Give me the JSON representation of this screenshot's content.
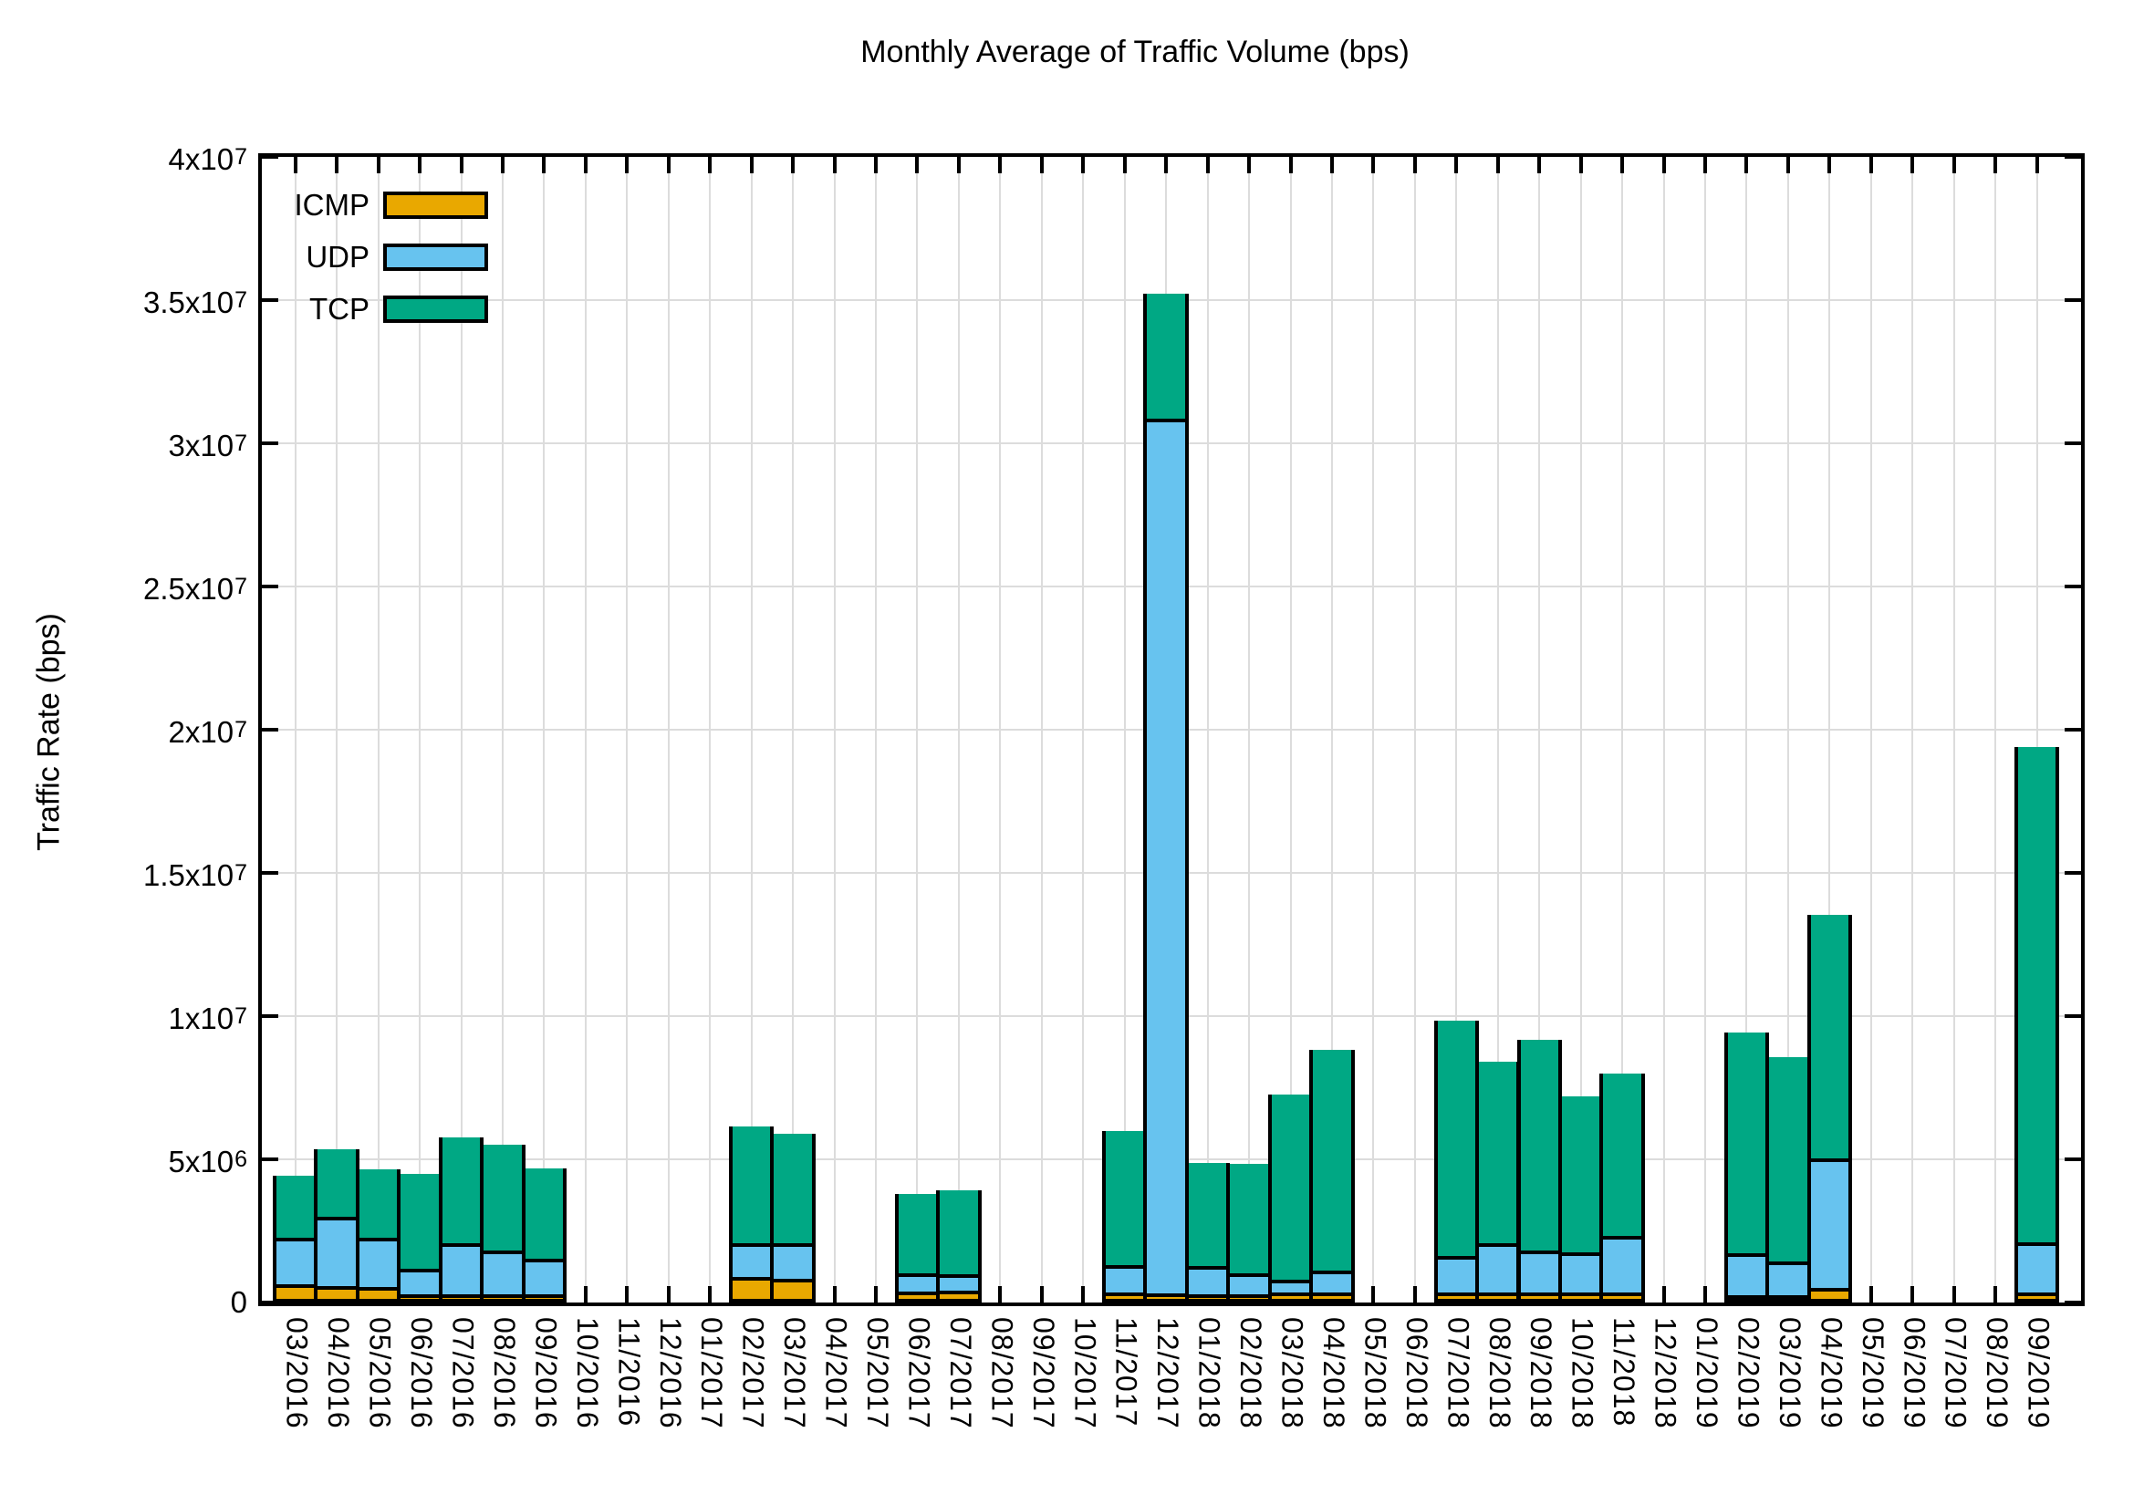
{
  "title": "Monthly Average of Traffic Volume (bps)",
  "axes": {
    "y_label": "Traffic Rate (bps)",
    "y_max": 40000000,
    "y_ticks": [
      {
        "label": "0",
        "sup": "",
        "value": 0
      },
      {
        "label": "5x10",
        "sup": "6",
        "value": 5000000
      },
      {
        "label": "1x10",
        "sup": "7",
        "value": 10000000
      },
      {
        "label": "1.5x10",
        "sup": "7",
        "value": 15000000
      },
      {
        "label": "2x10",
        "sup": "7",
        "value": 20000000
      },
      {
        "label": "2.5x10",
        "sup": "7",
        "value": 25000000
      },
      {
        "label": "3x10",
        "sup": "7",
        "value": 30000000
      },
      {
        "label": "3.5x10",
        "sup": "7",
        "value": 35000000
      },
      {
        "label": "4x10",
        "sup": "7",
        "value": 40000000
      }
    ]
  },
  "legend": [
    {
      "label": "ICMP",
      "color": "#E9A800"
    },
    {
      "label": "UDP",
      "color": "#67C3EF"
    },
    {
      "label": "TCP",
      "color": "#00A884"
    }
  ],
  "colors": {
    "icmp": "#E9A800",
    "udp": "#67C3EF",
    "tcp": "#00A884",
    "grid": "#DCDCDC",
    "axis": "#000000"
  },
  "chart_data": {
    "type": "bar",
    "stacked": true,
    "title": "Monthly Average of Traffic Volume (bps)",
    "xlabel": "",
    "ylabel": "Traffic Rate (bps)",
    "ylim": [
      0,
      40000000
    ],
    "grid": true,
    "legend_position": "top-left",
    "categories": [
      "03/2016",
      "04/2016",
      "05/2016",
      "06/2016",
      "07/2016",
      "08/2016",
      "09/2016",
      "10/2016",
      "11/2016",
      "12/2016",
      "01/2017",
      "02/2017",
      "03/2017",
      "04/2017",
      "05/2017",
      "06/2017",
      "07/2017",
      "08/2017",
      "09/2017",
      "10/2017",
      "11/2017",
      "12/2017",
      "01/2018",
      "02/2018",
      "03/2018",
      "04/2018",
      "05/2018",
      "06/2018",
      "07/2018",
      "08/2018",
      "09/2018",
      "10/2018",
      "11/2018",
      "12/2018",
      "01/2019",
      "02/2019",
      "03/2019",
      "04/2019",
      "05/2019",
      "06/2019",
      "07/2019",
      "08/2019",
      "09/2019"
    ],
    "series": [
      {
        "name": "ICMP",
        "color": "#E9A800",
        "values": [
          450000,
          380000,
          350000,
          100000,
          100000,
          100000,
          100000,
          0,
          0,
          0,
          0,
          700000,
          640000,
          0,
          0,
          180000,
          220000,
          0,
          0,
          0,
          150000,
          120000,
          100000,
          100000,
          160000,
          160000,
          0,
          0,
          160000,
          160000,
          160000,
          160000,
          160000,
          0,
          0,
          50000,
          50000,
          330000,
          0,
          0,
          0,
          0,
          160000
        ]
      },
      {
        "name": "UDP",
        "color": "#67C3EF",
        "values": [
          1620000,
          2420000,
          1720000,
          900000,
          1780000,
          1520000,
          1240000,
          0,
          0,
          0,
          0,
          1180000,
          1240000,
          0,
          0,
          650000,
          580000,
          0,
          0,
          0,
          960000,
          30560000,
          980000,
          730000,
          440000,
          760000,
          0,
          0,
          1270000,
          1720000,
          1460000,
          1400000,
          1970000,
          0,
          0,
          1480000,
          1190000,
          4510000,
          0,
          0,
          0,
          0,
          1750000
        ]
      },
      {
        "name": "TCP",
        "color": "#00A884",
        "values": [
          2230000,
          2420000,
          2450000,
          3360000,
          3750000,
          3760000,
          3210000,
          0,
          0,
          0,
          0,
          4140000,
          3880000,
          0,
          0,
          2830000,
          2990000,
          0,
          0,
          0,
          4760000,
          4420000,
          3660000,
          3880000,
          6530000,
          7770000,
          0,
          0,
          8280000,
          6400000,
          7420000,
          5510000,
          5740000,
          0,
          0,
          7770000,
          7200000,
          8570000,
          0,
          0,
          0,
          0,
          17360000
        ]
      }
    ]
  }
}
